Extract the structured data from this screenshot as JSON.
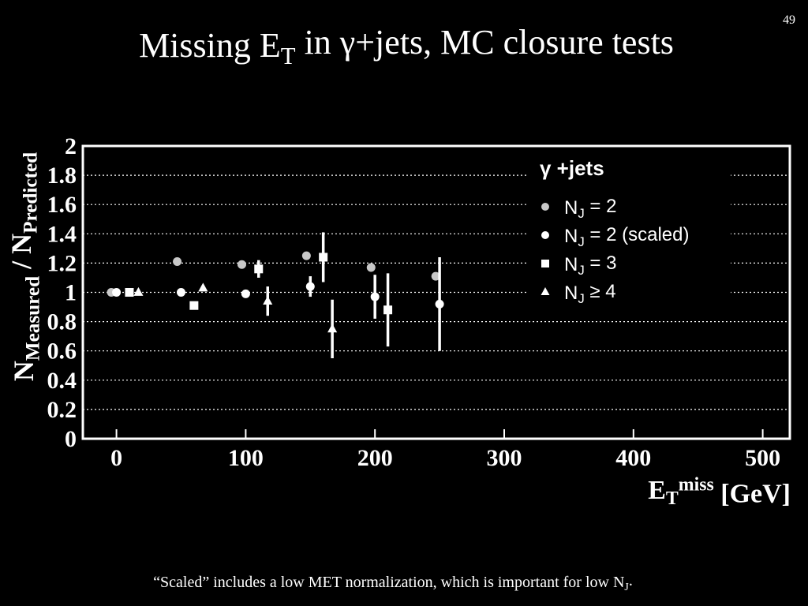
{
  "page_number": "49",
  "footnote": "“Scaled” includes a low MET normalization, which is important for low NJ.",
  "chart_data": {
    "type": "scatter",
    "title": "Missing ET in γ+jets, MC closure tests",
    "x_label": "ETmiss [GeV]",
    "y_label": "NMeasured / NPredicted",
    "legend_title": "γ +jets",
    "xlim": [
      -26,
      521
    ],
    "ylim": [
      0,
      2
    ],
    "xticks": [
      0,
      100,
      200,
      300,
      400,
      500
    ],
    "yticks": [
      0,
      0.2,
      0.4,
      0.6,
      0.8,
      1,
      1.2,
      1.4,
      1.6,
      1.8,
      2
    ],
    "grid": true,
    "series": [
      {
        "name": "NJ = 2",
        "color": "#c8c8c8",
        "marker": "circle",
        "x": [
          -4,
          47,
          97,
          147,
          197,
          247
        ],
        "values": [
          1.0,
          1.21,
          1.19,
          1.25,
          1.17,
          1.11
        ]
      },
      {
        "name": "NJ = 2 (scaled)",
        "color": "#ffffff",
        "marker": "circle",
        "x": [
          0,
          50,
          100,
          150,
          200,
          250
        ],
        "values": [
          1.0,
          1.0,
          0.99,
          1.04,
          0.97,
          0.92
        ],
        "errors": [
          0,
          0,
          0,
          0.07,
          0.15,
          0.32
        ]
      },
      {
        "name": "NJ = 3",
        "color": "#ffffff",
        "marker": "square",
        "x": [
          10,
          60,
          110,
          160,
          210
        ],
        "values": [
          1.0,
          0.91,
          1.16,
          1.24,
          0.88
        ],
        "errors": [
          0,
          0,
          0.06,
          0.17,
          0.25
        ]
      },
      {
        "name": "NJ ≥ 4",
        "color": "#ffffff",
        "marker": "triangle",
        "x": [
          17,
          67,
          117,
          167
        ],
        "values": [
          1.0,
          1.03,
          0.94,
          0.75
        ],
        "errors": [
          0,
          0,
          0.1,
          0.2
        ]
      }
    ]
  }
}
